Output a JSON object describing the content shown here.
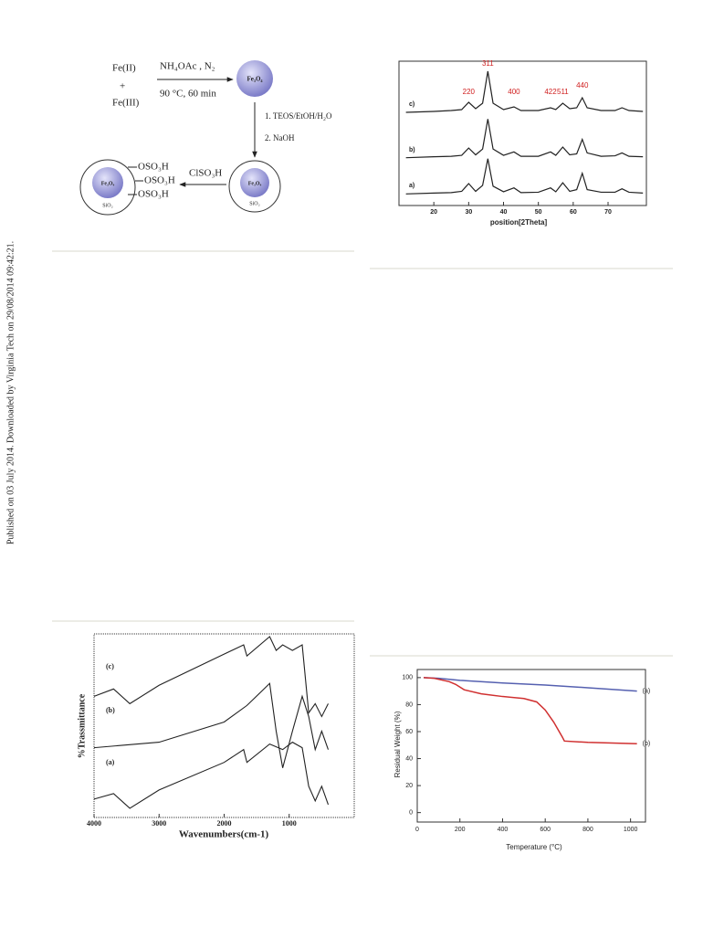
{
  "margin_note": "Published on 03 July 2014. Downloaded by Virginia Tech on 29/08/2014 09:42:21.",
  "scheme": {
    "reactant_1": "Fe(II)",
    "plus": "+",
    "reactant_2": "Fe(III)",
    "step_1_reagents": "NH₄OAc , N₂",
    "step_1_conditions": "90 °C, 60 min",
    "core": "Fe₃O₄",
    "step_2_line_1": "1. TEOS/EtOH/H₂O",
    "step_2_line_2": "2. NaOH",
    "shell": "SiO₂",
    "step_3_reagent": "ClSO₃H",
    "groups": [
      "OSO₃H",
      "OSO₃H",
      "OSO₃H"
    ]
  },
  "xrd": {
    "type": "line",
    "xlabel": "position[2Theta]",
    "xlim": [
      10,
      81
    ],
    "xticks": [
      20,
      30,
      40,
      50,
      60,
      70
    ],
    "x": [
      12,
      20,
      25,
      28,
      30,
      32,
      34,
      35.5,
      37,
      40,
      43,
      45,
      50,
      53.5,
      55,
      57,
      59,
      61,
      62.6,
      64,
      68,
      72,
      74,
      76,
      80
    ],
    "series": [
      {
        "name": "c)",
        "color": "#222222",
        "values": [
          10,
          12,
          14,
          16,
          32,
          18,
          30,
          100,
          30,
          16,
          22,
          14,
          14,
          20,
          16,
          30,
          18,
          20,
          42,
          20,
          14,
          14,
          20,
          14,
          12
        ]
      },
      {
        "name": "b)",
        "color": "#222222",
        "values": [
          10,
          12,
          13,
          15,
          30,
          16,
          28,
          90,
          28,
          15,
          22,
          13,
          13,
          22,
          15,
          32,
          16,
          18,
          48,
          20,
          13,
          14,
          20,
          13,
          12
        ]
      },
      {
        "name": "a)",
        "color": "#222222",
        "values": [
          10,
          12,
          13,
          16,
          34,
          16,
          30,
          92,
          28,
          15,
          24,
          13,
          14,
          24,
          15,
          36,
          16,
          20,
          58,
          20,
          14,
          14,
          22,
          14,
          12
        ]
      }
    ],
    "peaks": [
      {
        "label": "220",
        "position": 30
      },
      {
        "label": "311",
        "position": 35.5
      },
      {
        "label": "400",
        "position": 43
      },
      {
        "label": "422",
        "position": 53.5
      },
      {
        "label": "511",
        "position": 57
      },
      {
        "label": "440",
        "position": 62.6
      }
    ]
  },
  "ir": {
    "type": "line",
    "xlabel": "Wavenumbers(cm-1)",
    "ylabel": "%Trassmittance",
    "xlim": [
      4000,
      0
    ],
    "ylim": [
      0,
      100
    ],
    "xticks": [
      4000,
      3000,
      2000,
      1000
    ],
    "series": [
      {
        "name": "(c)",
        "color": "#222222",
        "x": [
          4000,
          3700,
          3450,
          3000,
          2000,
          1700,
          1650,
          1300,
          1200,
          1100,
          950,
          800,
          700,
          600,
          500,
          400
        ],
        "values": [
          66,
          70,
          62,
          72,
          89,
          94,
          88,
          98.5,
          91,
          94,
          91,
          94,
          57,
          62,
          55,
          62
        ]
      },
      {
        "name": "(b)",
        "color": "#222222",
        "x": [
          4000,
          3000,
          2000,
          1650,
          1300,
          1200,
          1100,
          950,
          800,
          700,
          600,
          500,
          400
        ],
        "values": [
          38,
          41,
          52,
          61,
          73,
          47,
          27,
          47,
          66,
          55,
          37,
          47,
          37
        ]
      },
      {
        "name": "(a)",
        "color": "#222222",
        "x": [
          4000,
          3700,
          3450,
          3000,
          2000,
          1700,
          1650,
          1300,
          1100,
          950,
          800,
          700,
          600,
          500,
          400
        ],
        "values": [
          10,
          13,
          5,
          15,
          30,
          37,
          30,
          40,
          37,
          41,
          38,
          17,
          9,
          17,
          7
        ]
      }
    ]
  },
  "tga": {
    "type": "line",
    "xlabel": "Temperature (°C)",
    "ylabel": "Residual Weight (%)",
    "xlim": [
      0,
      1070
    ],
    "ylim": [
      -7,
      106
    ],
    "xticks": [
      0,
      200,
      400,
      600,
      800,
      1000
    ],
    "yticks": [
      0,
      20,
      40,
      60,
      80,
      100
    ],
    "series": [
      {
        "name": "(a)",
        "color": "#5560b0",
        "x": [
          30,
          100,
          200,
          400,
          600,
          800,
          1030
        ],
        "values": [
          100,
          99.5,
          98,
          96,
          94.5,
          92.5,
          90
        ]
      },
      {
        "name": "(b)",
        "color": "#d03030",
        "x": [
          30,
          80,
          150,
          180,
          220,
          300,
          400,
          500,
          560,
          600,
          640,
          680,
          690,
          800,
          1030
        ],
        "values": [
          100,
          99.5,
          97,
          95,
          91,
          88,
          86,
          84.5,
          82,
          76,
          67,
          56,
          53,
          52,
          51
        ]
      }
    ]
  }
}
